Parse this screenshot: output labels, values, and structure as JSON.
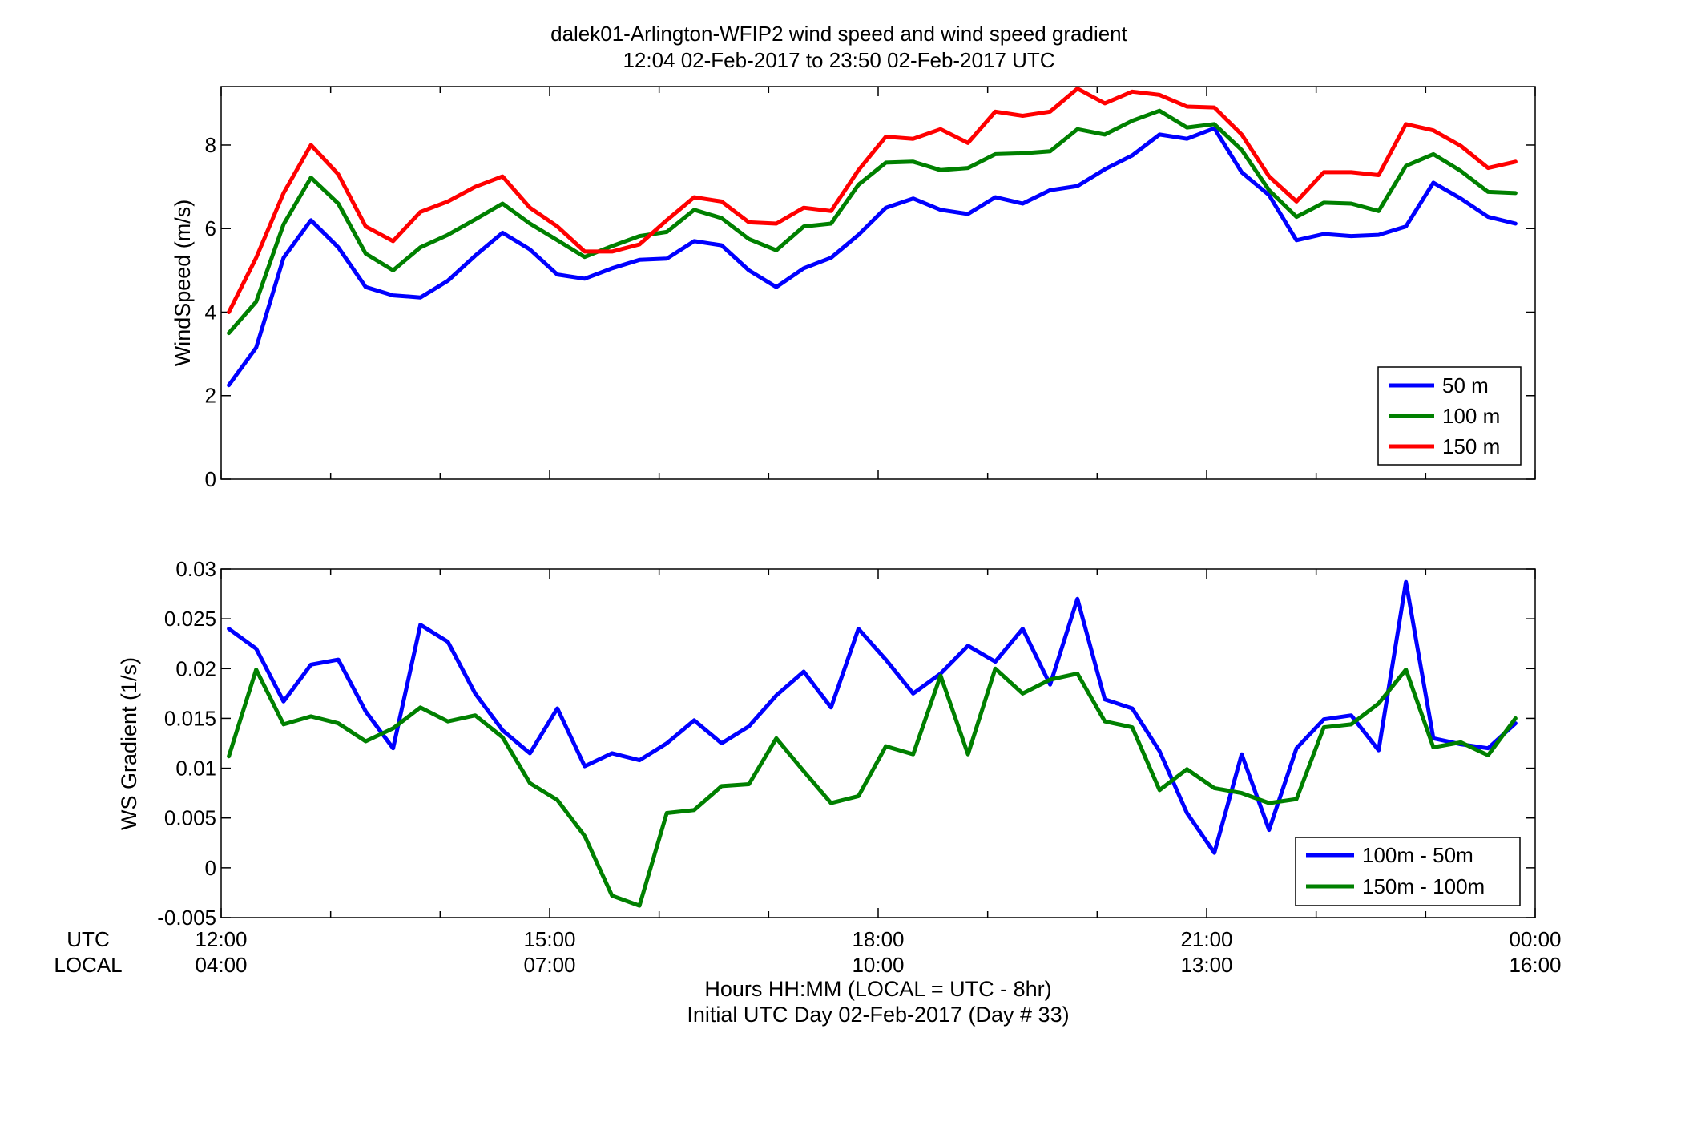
{
  "title_line1": "dalek01-Arlington-WFIP2  wind speed and wind speed gradient",
  "title_line2": "12:04 02-Feb-2017 to 23:50 02-Feb-2017  UTC",
  "xaxis": {
    "utc_row_label": "UTC",
    "local_row_label": "LOCAL",
    "utc_ticks": [
      "12:00",
      "15:00",
      "18:00",
      "21:00",
      "00:00"
    ],
    "local_ticks": [
      "04:00",
      "07:00",
      "10:00",
      "13:00",
      "16:00"
    ],
    "xlabel_line1": "Hours HH:MM  (LOCAL = UTC - 8hr)",
    "xlabel_line2": "Initial UTC Day 02-Feb-2017 (Day # 33)"
  },
  "chart_data": [
    {
      "type": "line",
      "ylabel": "WindSpeed (m/s)",
      "xlim": [
        12,
        24
      ],
      "ylim": [
        0,
        9.4
      ],
      "yticks": [
        0,
        2,
        4,
        6,
        8
      ],
      "ytick_labels": [
        "0",
        "2",
        "4",
        "6",
        "8"
      ],
      "legend_position": "bottom-right",
      "x": [
        12.07,
        12.32,
        12.57,
        12.82,
        13.07,
        13.32,
        13.57,
        13.82,
        14.07,
        14.32,
        14.57,
        14.82,
        15.07,
        15.32,
        15.57,
        15.82,
        16.07,
        16.32,
        16.57,
        16.82,
        17.07,
        17.32,
        17.57,
        17.82,
        18.07,
        18.32,
        18.57,
        18.82,
        19.07,
        19.32,
        19.57,
        19.82,
        20.07,
        20.32,
        20.57,
        20.82,
        21.07,
        21.32,
        21.57,
        21.82,
        22.07,
        22.32,
        22.57,
        22.82,
        23.07,
        23.32,
        23.57,
        23.82
      ],
      "series": [
        {
          "name": "50 m",
          "color": "#0000ff",
          "values": [
            2.25,
            3.15,
            5.3,
            6.2,
            5.55,
            4.6,
            4.4,
            4.35,
            4.75,
            5.35,
            5.9,
            5.5,
            4.9,
            4.8,
            5.05,
            5.25,
            5.28,
            5.7,
            5.6,
            5.0,
            4.6,
            5.05,
            5.3,
            5.85,
            6.5,
            6.72,
            6.45,
            6.35,
            6.75,
            6.6,
            6.92,
            7.02,
            7.42,
            7.75,
            8.25,
            8.15,
            8.4,
            7.35,
            6.8,
            5.72,
            5.87,
            5.82,
            5.85,
            6.05,
            7.1,
            6.72,
            6.28,
            6.12
          ]
        },
        {
          "name": "100 m",
          "color": "#008000",
          "values": [
            3.5,
            4.25,
            6.1,
            7.22,
            6.6,
            5.4,
            5.0,
            5.55,
            5.85,
            6.22,
            6.6,
            6.12,
            5.72,
            5.32,
            5.58,
            5.82,
            5.92,
            6.45,
            6.25,
            5.75,
            5.48,
            6.05,
            6.12,
            7.05,
            7.58,
            7.6,
            7.4,
            7.45,
            7.78,
            7.8,
            7.85,
            8.38,
            8.25,
            8.58,
            8.82,
            8.42,
            8.5,
            7.88,
            6.92,
            6.28,
            6.62,
            6.6,
            6.42,
            7.5,
            7.78,
            7.38,
            6.88,
            6.85
          ]
        },
        {
          "name": "150 m",
          "color": "#ff0000",
          "values": [
            4.0,
            5.3,
            6.85,
            8.0,
            7.3,
            6.05,
            5.7,
            6.4,
            6.65,
            7.0,
            7.25,
            6.5,
            6.05,
            5.45,
            5.45,
            5.62,
            6.2,
            6.75,
            6.65,
            6.15,
            6.12,
            6.5,
            6.42,
            7.4,
            8.2,
            8.15,
            8.38,
            8.05,
            8.8,
            8.7,
            8.8,
            9.35,
            9.0,
            9.28,
            9.2,
            8.92,
            8.9,
            8.25,
            7.25,
            6.65,
            7.35,
            7.35,
            7.28,
            8.5,
            8.35,
            7.98,
            7.45,
            7.6
          ]
        }
      ]
    },
    {
      "type": "line",
      "ylabel": "WS Gradient (1/s)",
      "xlim": [
        12,
        24
      ],
      "ylim": [
        -0.005,
        0.03
      ],
      "yticks": [
        -0.005,
        0,
        0.005,
        0.01,
        0.015,
        0.02,
        0.025,
        0.03
      ],
      "ytick_labels": [
        "-0.005",
        "0",
        "0.005",
        "0.01",
        "0.015",
        "0.02",
        "0.025",
        "0.03"
      ],
      "legend_position": "bottom-right",
      "x": [
        12.07,
        12.32,
        12.57,
        12.82,
        13.07,
        13.32,
        13.57,
        13.82,
        14.07,
        14.32,
        14.57,
        14.82,
        15.07,
        15.32,
        15.57,
        15.82,
        16.07,
        16.32,
        16.57,
        16.82,
        17.07,
        17.32,
        17.57,
        17.82,
        18.07,
        18.32,
        18.57,
        18.82,
        19.07,
        19.32,
        19.57,
        19.82,
        20.07,
        20.32,
        20.57,
        20.82,
        21.07,
        21.32,
        21.57,
        21.82,
        22.07,
        22.32,
        22.57,
        22.82,
        23.07,
        23.32,
        23.57,
        23.82
      ],
      "series": [
        {
          "name": "100m - 50m",
          "color": "#0000ff",
          "values": [
            0.024,
            0.022,
            0.0167,
            0.0204,
            0.0209,
            0.0157,
            0.012,
            0.0244,
            0.0227,
            0.0175,
            0.0138,
            0.0115,
            0.016,
            0.0102,
            0.0115,
            0.0108,
            0.0125,
            0.0148,
            0.0125,
            0.0142,
            0.0173,
            0.0197,
            0.0161,
            0.024,
            0.0209,
            0.0175,
            0.0195,
            0.0223,
            0.0207,
            0.024,
            0.0184,
            0.027,
            0.0169,
            0.016,
            0.0117,
            0.0055,
            0.0015,
            0.0114,
            0.0038,
            0.012,
            0.0149,
            0.0153,
            0.0118,
            0.0287,
            0.013,
            0.0124,
            0.012,
            0.0145
          ]
        },
        {
          "name": "150m - 100m",
          "color": "#008000",
          "values": [
            0.0112,
            0.0199,
            0.0144,
            0.0152,
            0.0145,
            0.0127,
            0.014,
            0.0161,
            0.0147,
            0.0153,
            0.0131,
            0.0085,
            0.0068,
            0.0032,
            -0.0028,
            -0.0038,
            0.0055,
            0.0058,
            0.0082,
            0.0084,
            0.013,
            0.0097,
            0.0065,
            0.0072,
            0.0122,
            0.0114,
            0.0193,
            0.0114,
            0.02,
            0.0175,
            0.0189,
            0.0195,
            0.0147,
            0.0141,
            0.0078,
            0.0099,
            0.008,
            0.0075,
            0.0065,
            0.0069,
            0.0141,
            0.0144,
            0.0165,
            0.0199,
            0.0121,
            0.0126,
            0.0113,
            0.015
          ]
        }
      ]
    }
  ]
}
